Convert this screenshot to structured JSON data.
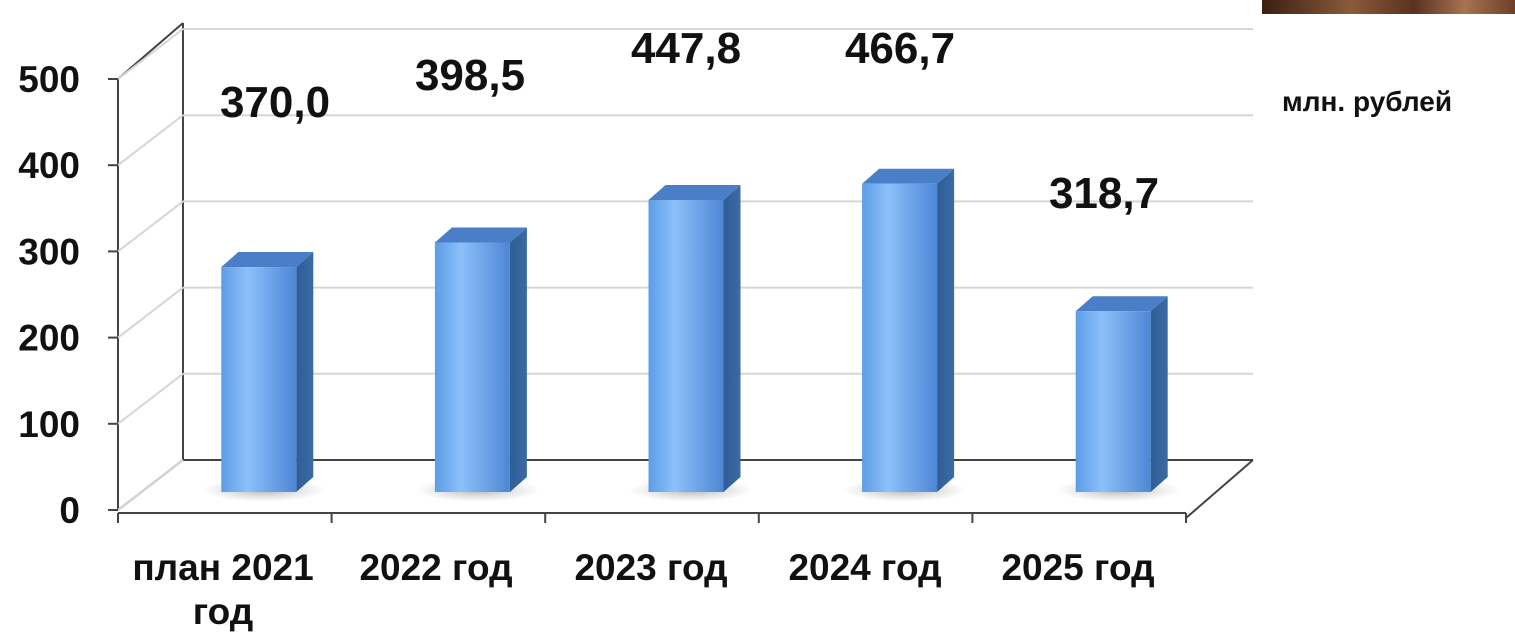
{
  "chart_data": {
    "type": "bar",
    "categories": [
      [
        "план 2021",
        "год"
      ],
      [
        "2022 год"
      ],
      [
        "2023 год"
      ],
      [
        "2024 год"
      ],
      [
        "2025 год"
      ]
    ],
    "values": [
      370.0,
      398.5,
      447.8,
      466.7,
      318.7
    ],
    "value_labels": [
      "370,0",
      "398,5",
      "447,8",
      "466,7",
      "318,7"
    ],
    "ylim": [
      0,
      500
    ],
    "yticks": [
      "0",
      "100",
      "200",
      "300",
      "400",
      "500"
    ],
    "ylabel": "млн. рублей",
    "grid": true,
    "style": "3d-column",
    "bar_color": "#6fa8ec"
  }
}
